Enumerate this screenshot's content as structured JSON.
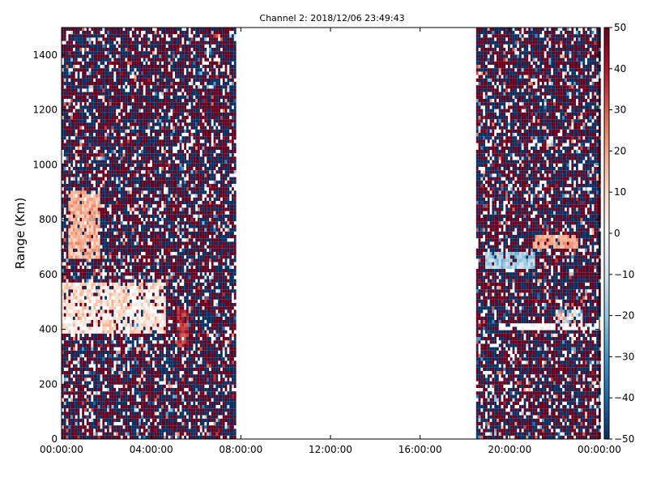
{
  "chart_data": {
    "type": "heatmap",
    "title": "Channel 2: 2018/12/06 23:49:43",
    "xlabel": "",
    "ylabel": "Range (Km)",
    "x_ticks": [
      "00:00:00",
      "04:00:00",
      "08:00:00",
      "12:00:00",
      "16:00:00",
      "20:00:00",
      "00:00:00"
    ],
    "x_range_hours": [
      0,
      24
    ],
    "y_ticks": [
      "0",
      "200",
      "400",
      "600",
      "800",
      "1000",
      "1200",
      "1400"
    ],
    "ylim": [
      0,
      1500
    ],
    "colorbar": {
      "ticks": [
        "50",
        "40",
        "30",
        "20",
        "10",
        "0",
        "−10",
        "−20",
        "−30",
        "−40",
        "−50"
      ],
      "range": [
        -50,
        50
      ],
      "colormap": "RdBu_r",
      "colors": [
        "#053061",
        "#2166ac",
        "#4393c3",
        "#92c5de",
        "#d1e5f0",
        "#f7f7f7",
        "#fddbc7",
        "#f4a582",
        "#d6604d",
        "#b2182b",
        "#67001f"
      ]
    },
    "data_segments_hours": [
      [
        0,
        7.7
      ],
      [
        18.5,
        24
      ]
    ],
    "gap_hours": [
      7.9,
      18.4
    ],
    "features": [
      {
        "hours": [
          0,
          4.6
        ],
        "range_km": [
          380,
          560
        ],
        "value_range": [
          -5,
          18
        ]
      },
      {
        "hours": [
          0.3,
          1.7
        ],
        "range_km": [
          650,
          900
        ],
        "value_range": [
          10,
          25
        ]
      },
      {
        "hours": [
          5.1,
          5.6
        ],
        "range_km": [
          330,
          460
        ],
        "value_range": [
          30,
          45
        ]
      },
      {
        "hours": [
          18.9,
          21.1
        ],
        "range_km": [
          620,
          680
        ],
        "value_range": [
          -25,
          -10
        ]
      },
      {
        "hours": [
          21.0,
          23.0
        ],
        "range_km": [
          690,
          740
        ],
        "value_range": [
          15,
          25
        ]
      },
      {
        "hours": [
          19.5,
          24
        ],
        "range_km": [
          395,
          415
        ],
        "value_range": [
          -5,
          5
        ]
      },
      {
        "hours": [
          22.0,
          23.2
        ],
        "range_km": [
          420,
          470
        ],
        "value_range": [
          -35,
          30
        ]
      }
    ]
  }
}
